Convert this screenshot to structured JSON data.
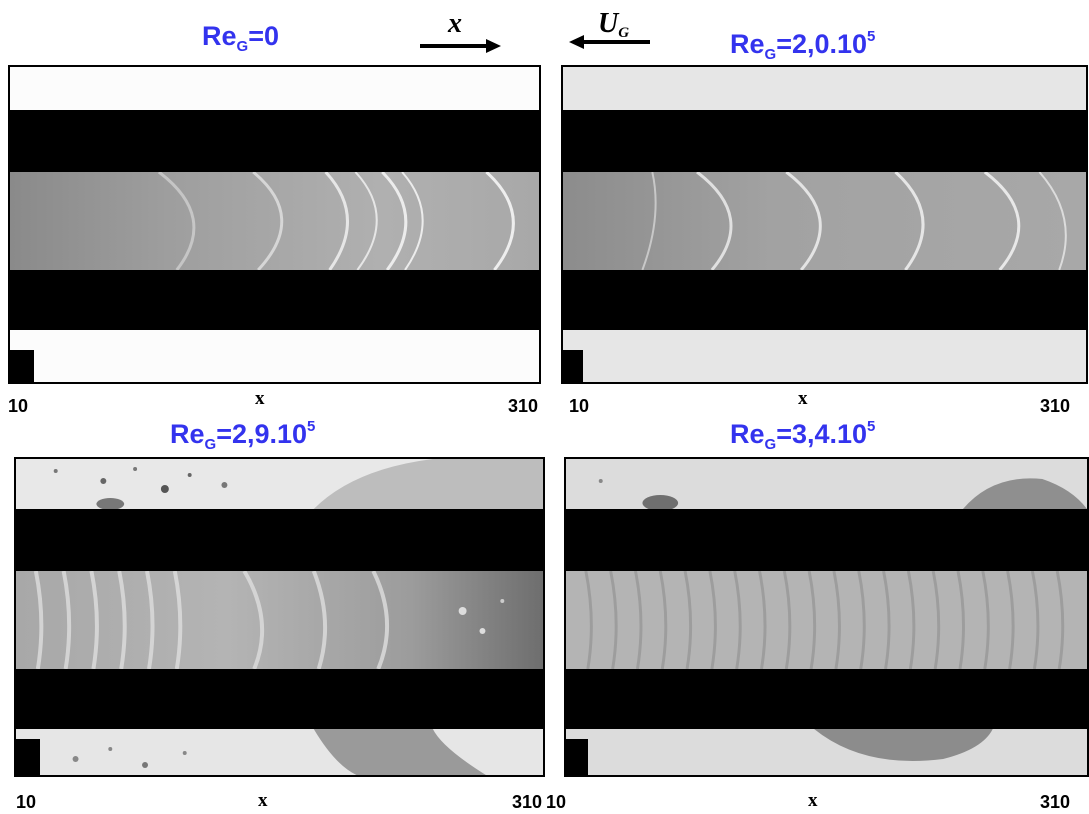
{
  "header": {
    "x_symbol": "x",
    "gas_velocity_symbol": "U",
    "gas_velocity_subscript": "G"
  },
  "panels": [
    {
      "re_base": "Re",
      "re_sub": "G",
      "re_value": "=0",
      "re_exp": "",
      "tick_left": "10",
      "tick_right": "310",
      "axis_label": "x"
    },
    {
      "re_base": "Re",
      "re_sub": "G",
      "re_value": "=2,0.10",
      "re_exp": "5",
      "tick_left": "10",
      "tick_right": "310",
      "axis_label": "x"
    },
    {
      "re_base": "Re",
      "re_sub": "G",
      "re_value": "=2,9.10",
      "re_exp": "5",
      "tick_left": "10",
      "tick_right": "310",
      "axis_label": "x"
    },
    {
      "re_base": "Re",
      "re_sub": "G",
      "re_value": "=3,4.10",
      "re_exp": "5",
      "tick_left": "10",
      "tick_right": "310",
      "axis_label": "x"
    }
  ],
  "colors": {
    "title": "#3333ee"
  }
}
